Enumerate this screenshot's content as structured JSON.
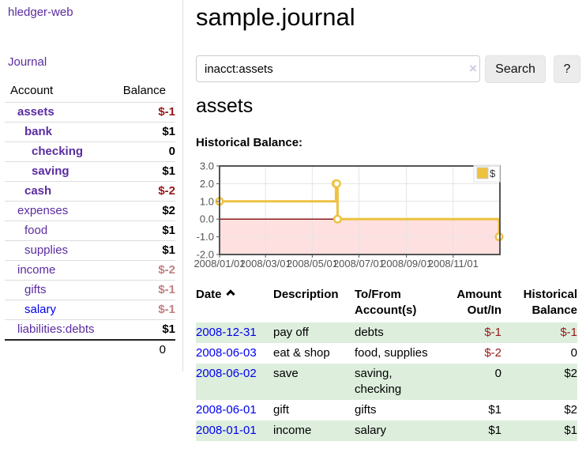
{
  "colors": {
    "link_purple": "#5a2ca0",
    "link_blue": "#0000ee",
    "negative_strong": "#961919",
    "negative_dim": "#c28080",
    "row_stripe_green": "#ddeedd",
    "series_gold": "#edc240"
  },
  "sidebar": {
    "brand": "hledger-web",
    "nav": {
      "journal": "Journal"
    },
    "accounts_table": {
      "col_account": "Account",
      "col_balance": "Balance",
      "rows": [
        {
          "name": "assets",
          "depth": 0,
          "emphasis": true,
          "link": "purple",
          "balance": "$-1",
          "balance_style": "neg"
        },
        {
          "name": "bank",
          "depth": 1,
          "emphasis": true,
          "link": "purple",
          "balance": "$1",
          "balance_style": "pos"
        },
        {
          "name": "checking",
          "depth": 2,
          "emphasis": true,
          "link": "purple",
          "balance": "0",
          "balance_style": "pos"
        },
        {
          "name": "saving",
          "depth": 2,
          "emphasis": true,
          "link": "purple",
          "balance": "$1",
          "balance_style": "pos"
        },
        {
          "name": "cash",
          "depth": 1,
          "emphasis": true,
          "link": "purple",
          "balance": "$-2",
          "balance_style": "neg"
        },
        {
          "name": "expenses",
          "depth": 0,
          "emphasis": false,
          "link": "purple",
          "balance": "$2",
          "balance_style": "pos"
        },
        {
          "name": "food",
          "depth": 1,
          "emphasis": false,
          "link": "purple",
          "balance": "$1",
          "balance_style": "pos"
        },
        {
          "name": "supplies",
          "depth": 1,
          "emphasis": false,
          "link": "purple",
          "balance": "$1",
          "balance_style": "pos"
        },
        {
          "name": "income",
          "depth": 0,
          "emphasis": false,
          "link": "purple",
          "balance": "$-2",
          "balance_style": "neg-dim"
        },
        {
          "name": "gifts",
          "depth": 1,
          "emphasis": false,
          "link": "purple",
          "balance": "$-1",
          "balance_style": "neg-dim"
        },
        {
          "name": "salary",
          "depth": 1,
          "emphasis": false,
          "link": "blue",
          "balance": "$-1",
          "balance_style": "neg-dim"
        },
        {
          "name": "liabilities:debts",
          "depth": 0,
          "emphasis": false,
          "link": "purple",
          "balance": "$1",
          "balance_style": "pos"
        }
      ],
      "total": "0"
    }
  },
  "main": {
    "title": "sample.journal",
    "search": {
      "value": "inacct:assets",
      "clear_icon": "×",
      "search_button": "Search",
      "help_button": "?"
    },
    "account_heading": "assets",
    "chart_heading": "Historical Balance:"
  },
  "chart_data": {
    "type": "line",
    "line_shape": "step-after",
    "title": "Historical Balance",
    "series": [
      {
        "name": "$",
        "color": "#edc240",
        "markers": true,
        "points": [
          [
            "2008-01-01",
            1
          ],
          [
            "2008-06-01",
            2
          ],
          [
            "2008-06-02",
            2
          ],
          [
            "2008-06-03",
            0
          ],
          [
            "2008-12-31",
            -1
          ]
        ]
      }
    ],
    "xrange": [
      "2008-01-01",
      "2009-01-01"
    ],
    "ylim": [
      -2,
      3
    ],
    "yticks": [
      {
        "label": "3.0",
        "value": 3
      },
      {
        "label": "2.0",
        "value": 2
      },
      {
        "label": "1.0",
        "value": 1
      },
      {
        "label": "0.0",
        "value": 0
      },
      {
        "label": "-1.0",
        "value": -1
      },
      {
        "label": "-2.0",
        "value": -2
      }
    ],
    "xticks": [
      {
        "label": "2008/01/01",
        "date": "2008-01-01"
      },
      {
        "label": "2008/03/01",
        "date": "2008-03-01"
      },
      {
        "label": "2008/05/01",
        "date": "2008-05-01"
      },
      {
        "label": "2008/07/01",
        "date": "2008-07-01"
      },
      {
        "label": "2008/09/01",
        "date": "2008-09-01"
      },
      {
        "label": "2008/11/01",
        "date": "2008-11-01"
      }
    ],
    "grid": true,
    "legend": {
      "position": "top-right",
      "entries": [
        {
          "label": "$",
          "color": "#edc240"
        }
      ]
    },
    "negative_region_fill": "rgba(255,0,0,0.12)",
    "zero_line_color": "#8b1a1a",
    "plot_border_color": "#545454",
    "grid_color": "#e4e4e4",
    "axis_label_color": "#545454"
  },
  "register": {
    "columns": [
      "Date",
      "Description",
      "To/From Account(s)",
      "Amount Out/In",
      "Historical Balance"
    ],
    "sort": {
      "column": "Date",
      "direction": "ascending"
    },
    "rows": [
      {
        "date": "2008-12-31",
        "description": "pay off",
        "accounts": "debts",
        "amount": "$-1",
        "amount_neg": true,
        "balance": "$-1",
        "balance_neg": true,
        "striped": true
      },
      {
        "date": "2008-06-03",
        "description": "eat & shop",
        "accounts": "food, supplies",
        "amount": "$-2",
        "amount_neg": true,
        "balance": "0",
        "balance_neg": false,
        "striped": false
      },
      {
        "date": "2008-06-02",
        "description": "save",
        "accounts": "saving, checking",
        "amount": "0",
        "amount_neg": false,
        "balance": "$2",
        "balance_neg": false,
        "striped": true
      },
      {
        "date": "2008-06-01",
        "description": "gift",
        "accounts": "gifts",
        "amount": "$1",
        "amount_neg": false,
        "balance": "$2",
        "balance_neg": false,
        "striped": false
      },
      {
        "date": "2008-01-01",
        "description": "income",
        "accounts": "salary",
        "amount": "$1",
        "amount_neg": false,
        "balance": "$1",
        "balance_neg": false,
        "striped": true
      }
    ]
  }
}
